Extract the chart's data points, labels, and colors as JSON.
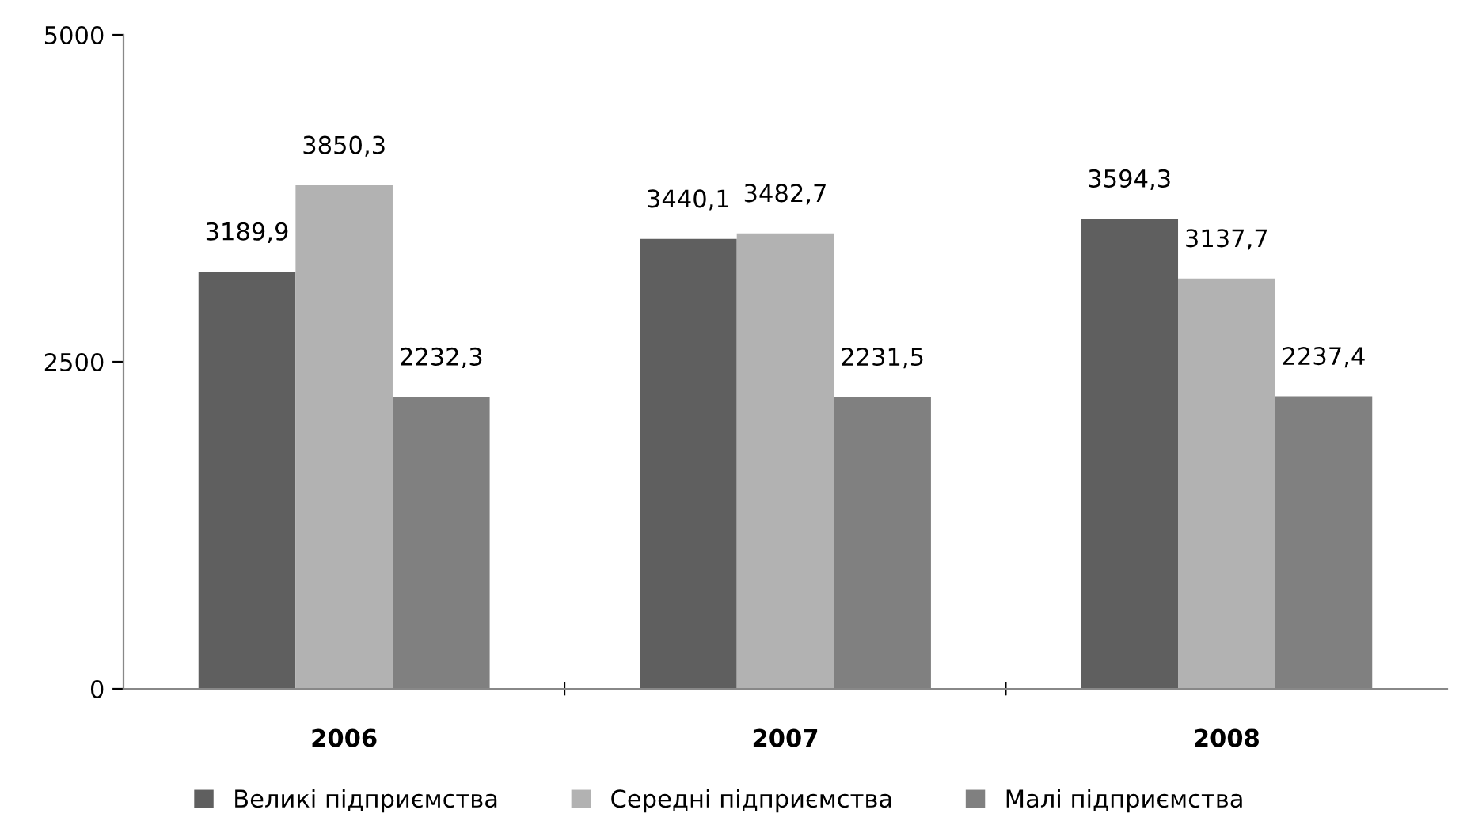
{
  "chart_data": {
    "type": "bar",
    "categories": [
      "2006",
      "2007",
      "2008"
    ],
    "series": [
      {
        "name": "Великі підприємства",
        "color": "#5f5f5f",
        "values": [
          3189.9,
          3440.1,
          3594.3
        ],
        "value_labels": [
          "3189,9",
          "3440,1",
          "3594,3"
        ]
      },
      {
        "name": "Середні підприємства",
        "color": "#b2b2b2",
        "values": [
          3850.3,
          3482.7,
          3137.7
        ],
        "value_labels": [
          "3850,3",
          "3482,7",
          "3137,7"
        ]
      },
      {
        "name": "Малі підприємства",
        "color": "#808080",
        "values": [
          2232.3,
          2231.5,
          2237.4
        ],
        "value_labels": [
          "2232,3",
          "2231,5",
          "2237,4"
        ]
      }
    ],
    "ylim": [
      0,
      5000
    ],
    "yticks": [
      0,
      2500,
      5000
    ],
    "grid": false,
    "legend": "bottom"
  }
}
